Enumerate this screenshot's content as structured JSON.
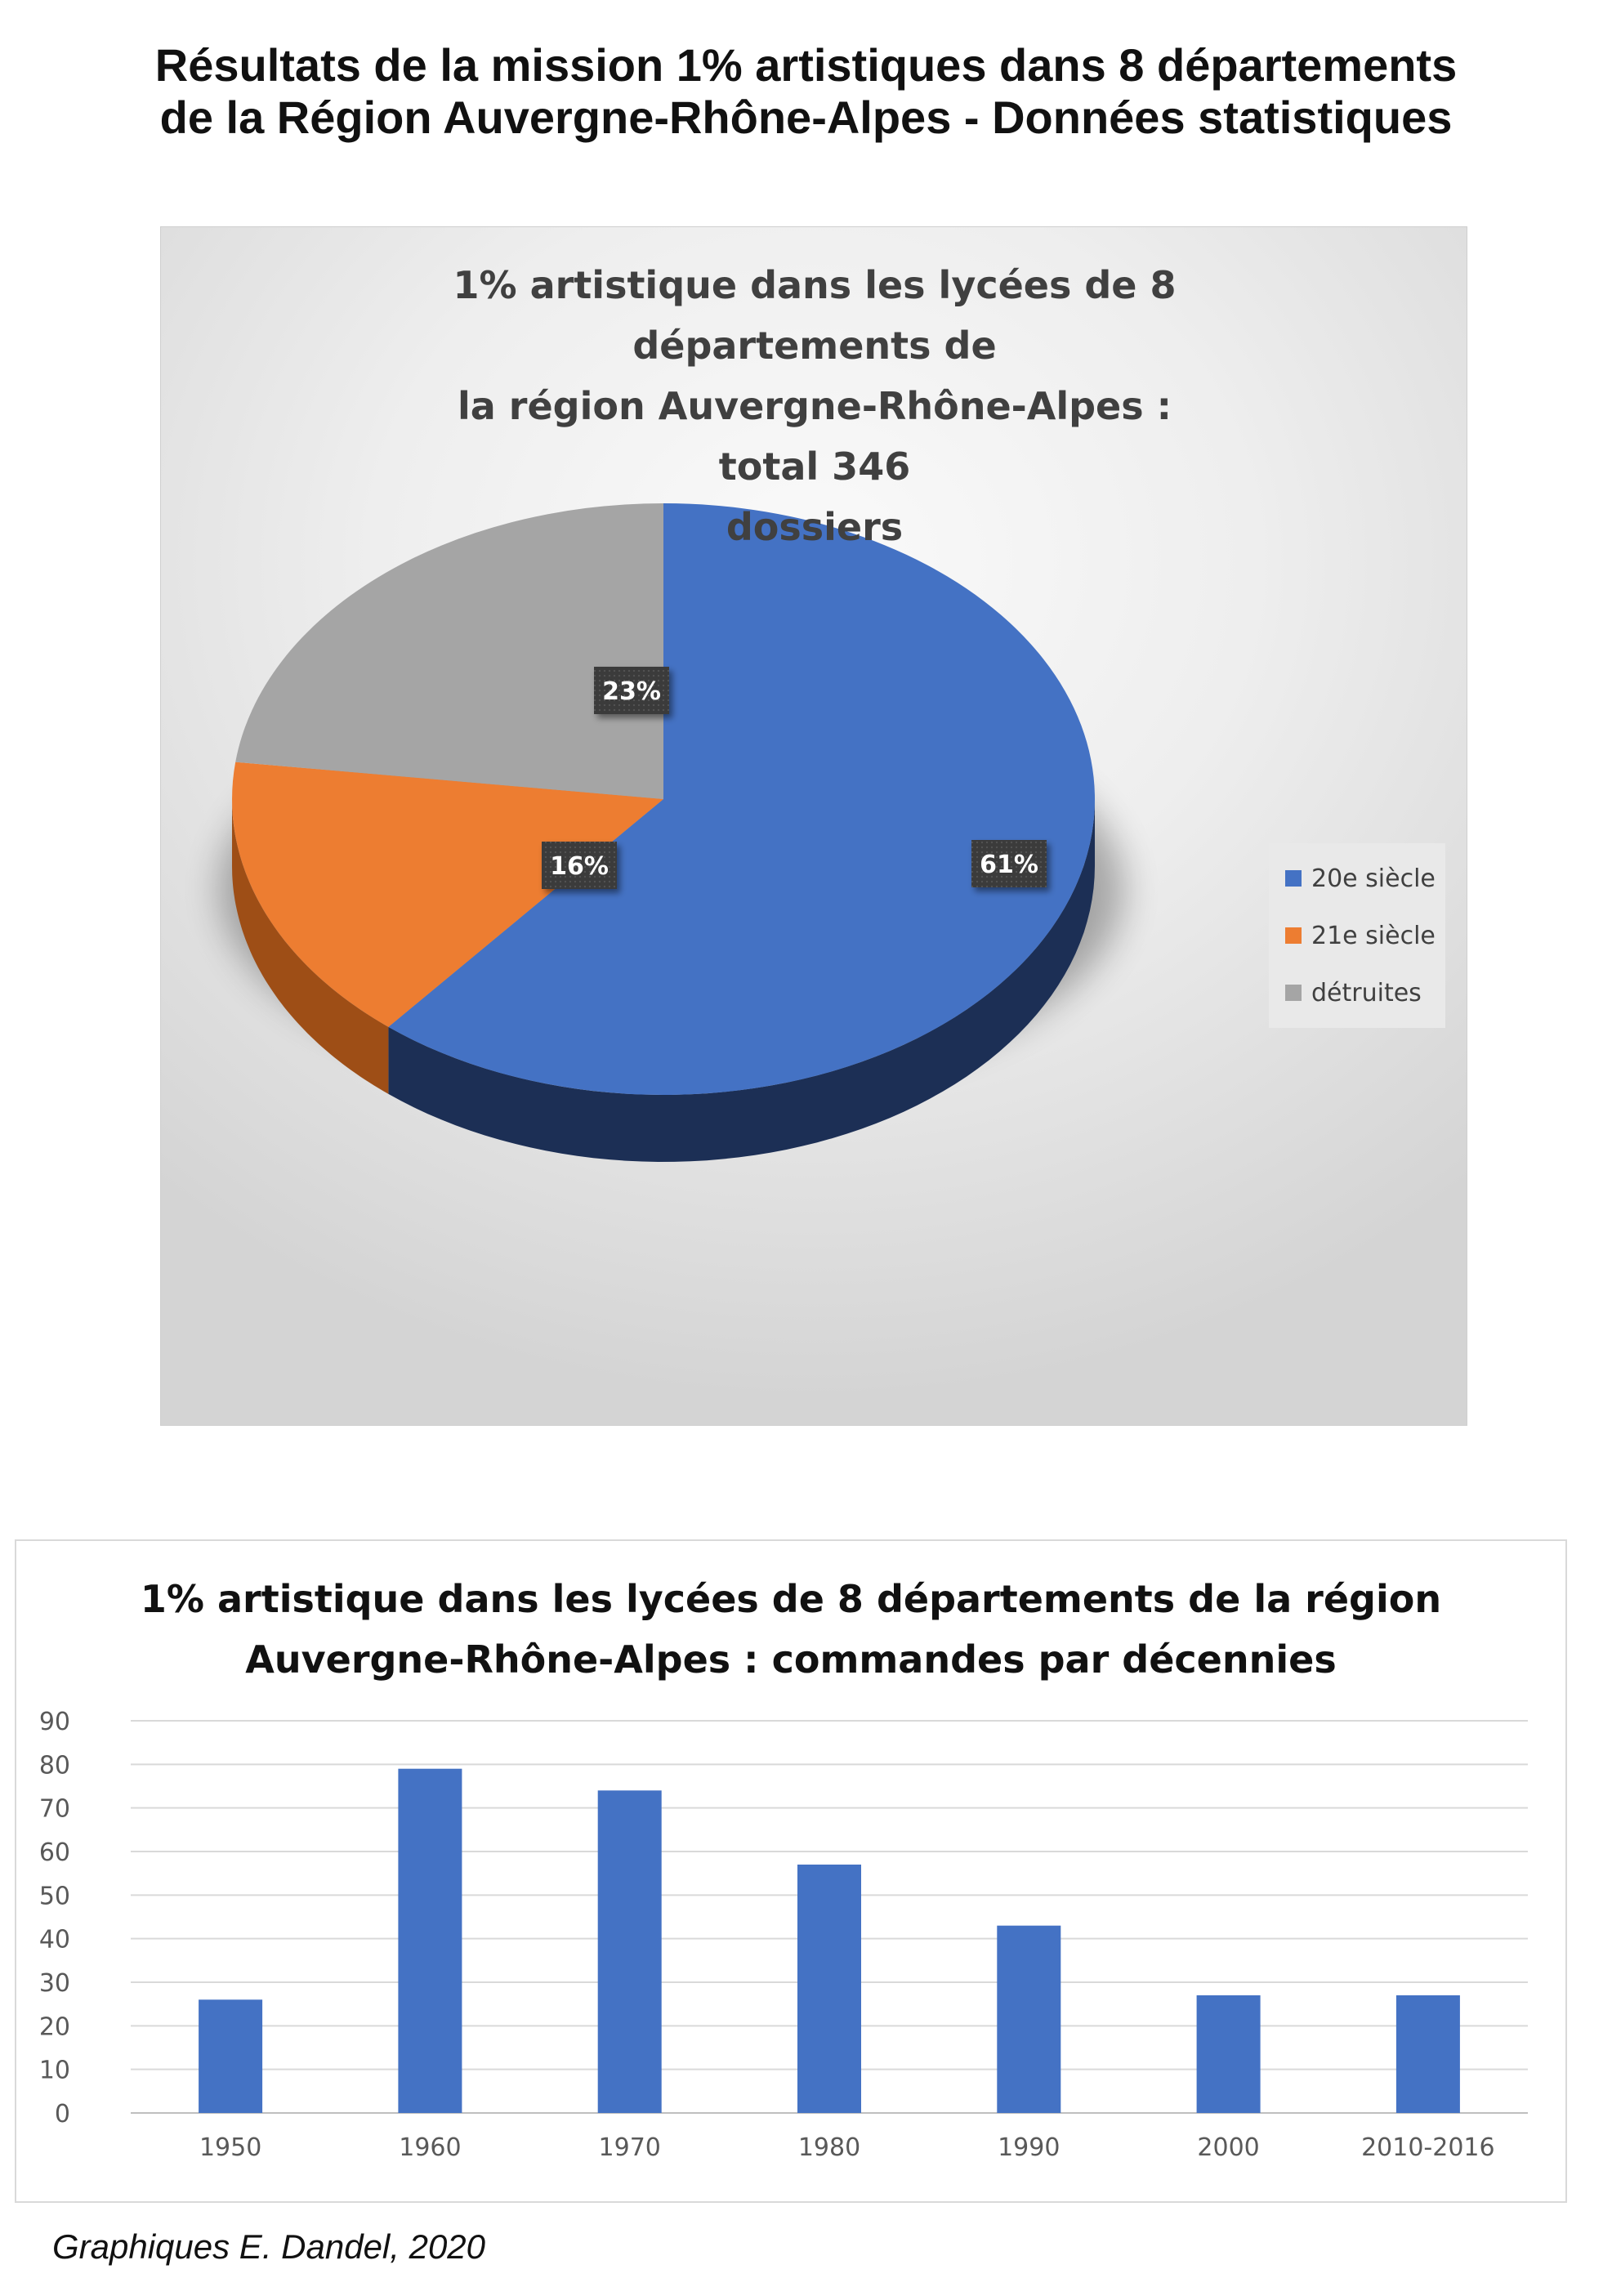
{
  "page": {
    "title_line1": "Résultats de la mission 1% artistiques dans 8 départements",
    "title_line2": "de la Région Auvergne-Rhône-Alpes - Données statistiques",
    "credit": "Graphiques E. Dandel, 2020"
  },
  "chart_data": [
    {
      "type": "pie",
      "title": "1% artistique dans les lycées de 8 départements de la région Auvergne-Rhône-Alpes : total 346 dossiers",
      "title_lines": [
        "1% artistique dans les lycées de 8 départements de",
        "la région Auvergne-Rhône-Alpes : total 346",
        "dossiers"
      ],
      "style": "3d",
      "legend_position": "right",
      "slices": [
        {
          "label": "20e siècle",
          "value": 61,
          "display": "61%",
          "color": "#4472C4",
          "side_color": "#1C2F55"
        },
        {
          "label": "21e siècle",
          "value": 16,
          "display": "16%",
          "color": "#ED7D31",
          "side_color": "#9E4E16"
        },
        {
          "label": "détruites",
          "value": 23,
          "display": "23%",
          "color": "#A5A5A5",
          "side_color": "#6B6B6B"
        }
      ]
    },
    {
      "type": "bar",
      "title": "1% artistique dans les lycées de 8 départements de la région Auvergne-Rhône-Alpes : commandes par décennies",
      "title_lines": [
        "1% artistique dans les lycées de 8 départements de la région",
        "Auvergne-Rhône-Alpes : commandes par décennies"
      ],
      "categories": [
        "1950",
        "1960",
        "1970",
        "1980",
        "1990",
        "2000",
        "2010-2016"
      ],
      "series": [
        {
          "values": [
            26,
            79,
            74,
            57,
            43,
            27,
            27
          ],
          "color": "#4472C4"
        }
      ],
      "ylim": [
        0,
        90
      ],
      "yticks": [
        0,
        10,
        20,
        30,
        40,
        50,
        60,
        70,
        80,
        90
      ],
      "grid": true,
      "xlabel": "",
      "ylabel": ""
    }
  ]
}
